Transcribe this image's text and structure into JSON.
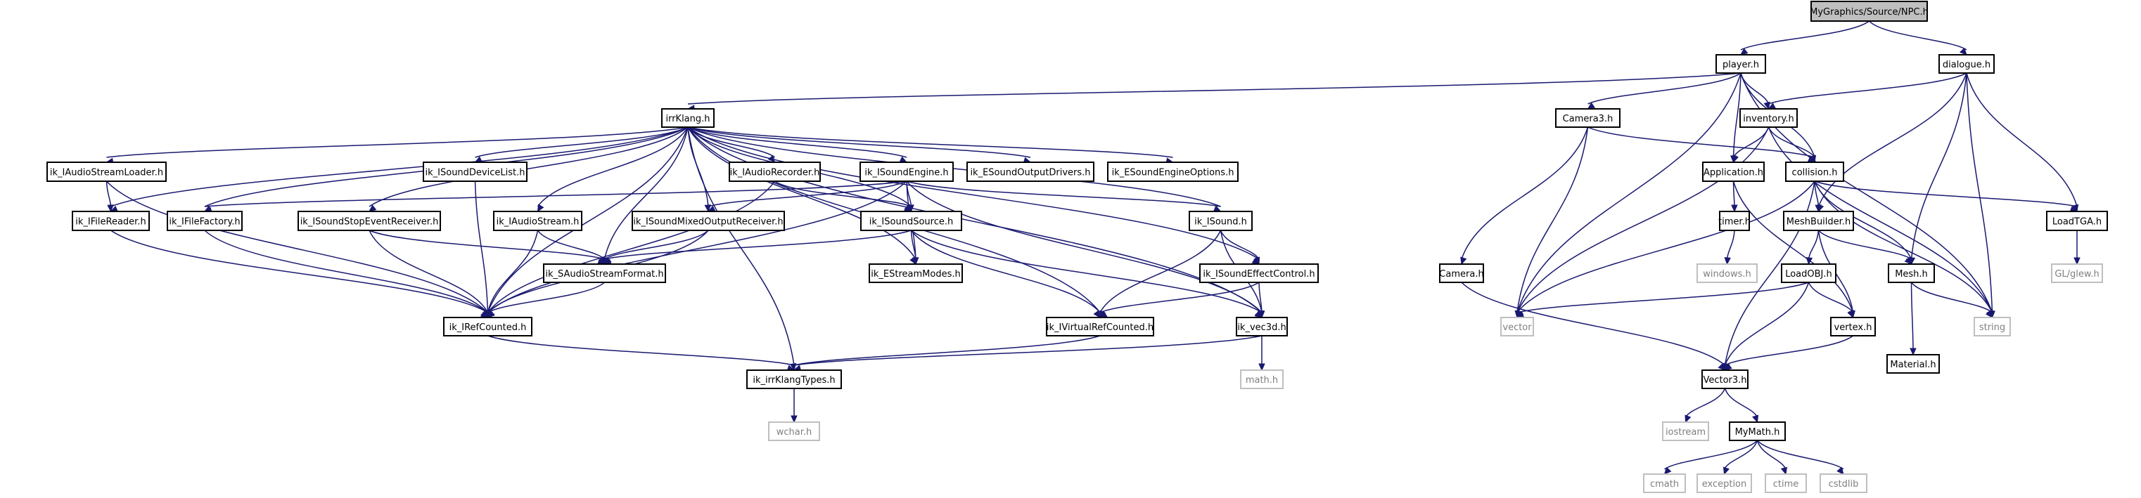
{
  "graph": {
    "nodes": [
      {
        "id": "npc",
        "label": "MyGraphics/Source/NPC.h",
        "kind": "root"
      },
      {
        "id": "player",
        "label": "player.h"
      },
      {
        "id": "dialogue",
        "label": "dialogue.h"
      },
      {
        "id": "irrklang",
        "label": "irrKlang.h"
      },
      {
        "id": "camera3",
        "label": "Camera3.h"
      },
      {
        "id": "inventory",
        "label": "inventory.h"
      },
      {
        "id": "audiostreamloader",
        "label": "ik_IAudioStreamLoader.h"
      },
      {
        "id": "sounddevicelist",
        "label": "ik_ISoundDeviceList.h"
      },
      {
        "id": "audiorecorder",
        "label": "ik_IAudioRecorder.h"
      },
      {
        "id": "soundengine",
        "label": "ik_ISoundEngine.h"
      },
      {
        "id": "esoundoutputdrivers",
        "label": "ik_ESoundOutputDrivers.h"
      },
      {
        "id": "esoundengineoptions",
        "label": "ik_ESoundEngineOptions.h"
      },
      {
        "id": "application",
        "label": "Application.h"
      },
      {
        "id": "collision",
        "label": "collision.h"
      },
      {
        "id": "filereader",
        "label": "ik_IFileReader.h"
      },
      {
        "id": "filefactory",
        "label": "ik_IFileFactory.h"
      },
      {
        "id": "soundstopeventreceiver",
        "label": "ik_ISoundStopEventReceiver.h"
      },
      {
        "id": "audiostream",
        "label": "ik_IAudioStream.h"
      },
      {
        "id": "soundmixedoutputreceiver",
        "label": "ik_ISoundMixedOutputReceiver.h"
      },
      {
        "id": "soundsource",
        "label": "ik_ISoundSource.h"
      },
      {
        "id": "isound",
        "label": "ik_ISound.h"
      },
      {
        "id": "timer",
        "label": "timer.h"
      },
      {
        "id": "meshbuilder",
        "label": "MeshBuilder.h"
      },
      {
        "id": "loadtga",
        "label": "LoadTGA.h"
      },
      {
        "id": "saudiostreamformat",
        "label": "ik_SAudioStreamFormat.h"
      },
      {
        "id": "estreammodes",
        "label": "ik_EStreamModes.h"
      },
      {
        "id": "soundeffectcontrol",
        "label": "ik_ISoundEffectControl.h"
      },
      {
        "id": "windows",
        "label": "windows.h",
        "kind": "sys"
      },
      {
        "id": "camera",
        "label": "Camera.h"
      },
      {
        "id": "loadobj",
        "label": "LoadOBJ.h"
      },
      {
        "id": "mesh",
        "label": "Mesh.h"
      },
      {
        "id": "glew",
        "label": "GL/glew.h",
        "kind": "sys"
      },
      {
        "id": "irefcounted",
        "label": "ik_IRefCounted.h"
      },
      {
        "id": "ivirtualrefcounted",
        "label": "ik_IVirtualRefCounted.h"
      },
      {
        "id": "vec3d",
        "label": "ik_vec3d.h"
      },
      {
        "id": "vector",
        "label": "vector",
        "kind": "sys"
      },
      {
        "id": "vertex",
        "label": "vertex.h"
      },
      {
        "id": "material",
        "label": "Material.h"
      },
      {
        "id": "string",
        "label": "string",
        "kind": "sys"
      },
      {
        "id": "mathh",
        "label": "math.h",
        "kind": "sys"
      },
      {
        "id": "irrklangtypes",
        "label": "ik_irrKlangTypes.h"
      },
      {
        "id": "vector3",
        "label": "Vector3.h"
      },
      {
        "id": "iostream",
        "label": "iostream",
        "kind": "sys"
      },
      {
        "id": "mymath",
        "label": "MyMath.h"
      },
      {
        "id": "wchar",
        "label": "wchar.h",
        "kind": "sys"
      },
      {
        "id": "cmath",
        "label": "cmath",
        "kind": "sys"
      },
      {
        "id": "exception",
        "label": "exception",
        "kind": "sys"
      },
      {
        "id": "ctime",
        "label": "ctime",
        "kind": "sys"
      },
      {
        "id": "cstdlib",
        "label": "cstdlib",
        "kind": "sys"
      }
    ],
    "edges": [
      [
        "npc",
        "player"
      ],
      [
        "npc",
        "dialogue"
      ],
      [
        "player",
        "irrklang"
      ],
      [
        "player",
        "camera3"
      ],
      [
        "player",
        "inventory"
      ],
      [
        "player",
        "application"
      ],
      [
        "player",
        "collision"
      ],
      [
        "player",
        "vector"
      ],
      [
        "player",
        "string"
      ],
      [
        "dialogue",
        "inventory"
      ],
      [
        "dialogue",
        "meshbuilder"
      ],
      [
        "dialogue",
        "mesh"
      ],
      [
        "dialogue",
        "loadtga"
      ],
      [
        "dialogue",
        "string"
      ],
      [
        "irrklang",
        "audiostreamloader"
      ],
      [
        "irrklang",
        "sounddevicelist"
      ],
      [
        "irrklang",
        "audiorecorder"
      ],
      [
        "irrklang",
        "soundengine"
      ],
      [
        "irrklang",
        "esoundoutputdrivers"
      ],
      [
        "irrklang",
        "esoundengineoptions"
      ],
      [
        "irrklang",
        "filereader"
      ],
      [
        "irrklang",
        "filefactory"
      ],
      [
        "irrklang",
        "soundstopeventreceiver"
      ],
      [
        "irrklang",
        "audiostream"
      ],
      [
        "irrklang",
        "soundmixedoutputreceiver"
      ],
      [
        "irrklang",
        "soundsource"
      ],
      [
        "irrklang",
        "isound"
      ],
      [
        "irrklang",
        "saudiostreamformat"
      ],
      [
        "irrklang",
        "estreammodes"
      ],
      [
        "irrklang",
        "soundeffectcontrol"
      ],
      [
        "irrklang",
        "irefcounted"
      ],
      [
        "irrklang",
        "ivirtualrefcounted"
      ],
      [
        "irrklang",
        "vec3d"
      ],
      [
        "irrklang",
        "irrklangtypes"
      ],
      [
        "camera3",
        "camera"
      ],
      [
        "camera3",
        "collision"
      ],
      [
        "camera3",
        "vector"
      ],
      [
        "inventory",
        "application"
      ],
      [
        "inventory",
        "collision"
      ],
      [
        "inventory",
        "vector"
      ],
      [
        "inventory",
        "string"
      ],
      [
        "audiostreamloader",
        "filereader"
      ],
      [
        "audiostreamloader",
        "irefcounted"
      ],
      [
        "sounddevicelist",
        "irefcounted"
      ],
      [
        "audiorecorder",
        "soundsource"
      ],
      [
        "audiorecorder",
        "irefcounted"
      ],
      [
        "soundengine",
        "filefactory"
      ],
      [
        "soundengine",
        "soundmixedoutputreceiver"
      ],
      [
        "soundengine",
        "soundsource"
      ],
      [
        "soundengine",
        "isound"
      ],
      [
        "soundengine",
        "estreammodes"
      ],
      [
        "soundengine",
        "irefcounted"
      ],
      [
        "soundengine",
        "vec3d"
      ],
      [
        "application",
        "timer"
      ],
      [
        "application",
        "vertex"
      ],
      [
        "collision",
        "meshbuilder"
      ],
      [
        "collision",
        "mesh"
      ],
      [
        "collision",
        "loadtga"
      ],
      [
        "collision",
        "vector3"
      ],
      [
        "collision",
        "vector"
      ],
      [
        "collision",
        "string"
      ],
      [
        "filereader",
        "irefcounted"
      ],
      [
        "filefactory",
        "irefcounted"
      ],
      [
        "soundstopeventreceiver",
        "saudiostreamformat"
      ],
      [
        "soundstopeventreceiver",
        "irefcounted"
      ],
      [
        "audiostream",
        "saudiostreamformat"
      ],
      [
        "audiostream",
        "irefcounted"
      ],
      [
        "soundmixedoutputreceiver",
        "saudiostreamformat"
      ],
      [
        "soundmixedoutputreceiver",
        "irefcounted"
      ],
      [
        "soundsource",
        "saudiostreamformat"
      ],
      [
        "soundsource",
        "estreammodes"
      ],
      [
        "soundsource",
        "ivirtualrefcounted"
      ],
      [
        "soundsource",
        "vec3d"
      ],
      [
        "isound",
        "soundeffectcontrol"
      ],
      [
        "isound",
        "ivirtualrefcounted"
      ],
      [
        "isound",
        "vec3d"
      ],
      [
        "timer",
        "windows"
      ],
      [
        "meshbuilder",
        "loadobj"
      ],
      [
        "meshbuilder",
        "mesh"
      ],
      [
        "meshbuilder",
        "vertex"
      ],
      [
        "loadtga",
        "glew"
      ],
      [
        "saudiostreamformat",
        "irefcounted"
      ],
      [
        "soundeffectcontrol",
        "ivirtualrefcounted"
      ],
      [
        "soundeffectcontrol",
        "vec3d"
      ],
      [
        "camera",
        "vector3"
      ],
      [
        "loadobj",
        "vector"
      ],
      [
        "loadobj",
        "vertex"
      ],
      [
        "loadobj",
        "vector3"
      ],
      [
        "mesh",
        "material"
      ],
      [
        "mesh",
        "string"
      ],
      [
        "irefcounted",
        "irrklangtypes"
      ],
      [
        "ivirtualrefcounted",
        "irrklangtypes"
      ],
      [
        "vec3d",
        "mathh"
      ],
      [
        "vec3d",
        "irrklangtypes"
      ],
      [
        "vertex",
        "vector3"
      ],
      [
        "irrklangtypes",
        "wchar"
      ],
      [
        "vector3",
        "iostream"
      ],
      [
        "vector3",
        "mymath"
      ],
      [
        "mymath",
        "cmath"
      ],
      [
        "mymath",
        "exception"
      ],
      [
        "mymath",
        "ctime"
      ],
      [
        "mymath",
        "cstdlib"
      ]
    ],
    "colors": {
      "edge": "#191970",
      "node_border": "#000000",
      "root_fill": "#bfbfbf",
      "system_border": "#bfbfbf",
      "system_text": "#7f7f7f"
    }
  }
}
